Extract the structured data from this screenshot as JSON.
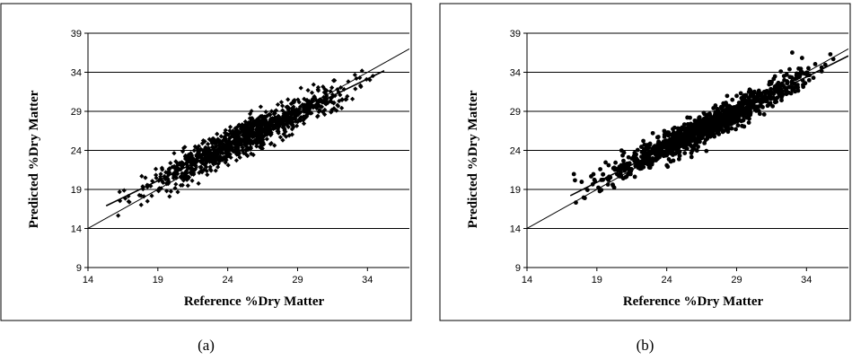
{
  "chart_data": [
    {
      "type": "scatter",
      "caption": "(a)",
      "xlabel": "Reference %Dry Matter",
      "ylabel": "Predicted %Dry Matter",
      "xlim": [
        14,
        37
      ],
      "ylim": [
        9,
        39
      ],
      "xticks": [
        14,
        19,
        24,
        29,
        34
      ],
      "yticks": [
        9,
        14,
        19,
        24,
        29,
        34,
        39
      ],
      "grid": "horizontal",
      "marker": "diamond",
      "color": "#000000",
      "lines": [
        {
          "kind": "identity",
          "x": [
            14,
            37
          ],
          "y": [
            14,
            37
          ]
        },
        {
          "kind": "fit",
          "x": [
            15.3,
            35.2
          ],
          "y": [
            16.9,
            34.2
          ]
        }
      ],
      "n_points": 1100,
      "point_cloud": {
        "x_range": [
          15.3,
          35.2
        ],
        "fit_slope": 0.87,
        "fit_intercept": 3.6,
        "spread_sd": 1.05
      },
      "seed": 11
    },
    {
      "type": "scatter",
      "caption": "(b)",
      "xlabel": "Reference %Dry Matter",
      "ylabel": "Predicted %Dry Matter",
      "xlim": [
        14,
        37
      ],
      "ylim": [
        9,
        39
      ],
      "xticks": [
        14,
        19,
        24,
        29,
        34
      ],
      "yticks": [
        9,
        14,
        19,
        24,
        29,
        34,
        39
      ],
      "grid": "horizontal",
      "marker": "circle",
      "color": "#000000",
      "lines": [
        {
          "kind": "identity",
          "x": [
            14,
            37
          ],
          "y": [
            14,
            37
          ]
        },
        {
          "kind": "fit",
          "x": [
            17.1,
            37
          ],
          "y": [
            18.2,
            36.1
          ]
        }
      ],
      "n_points": 1100,
      "point_cloud": {
        "x_range": [
          16.5,
          36.8
        ],
        "fit_slope": 0.9,
        "fit_intercept": 2.8,
        "spread_sd": 0.95
      },
      "seed": 29
    }
  ]
}
